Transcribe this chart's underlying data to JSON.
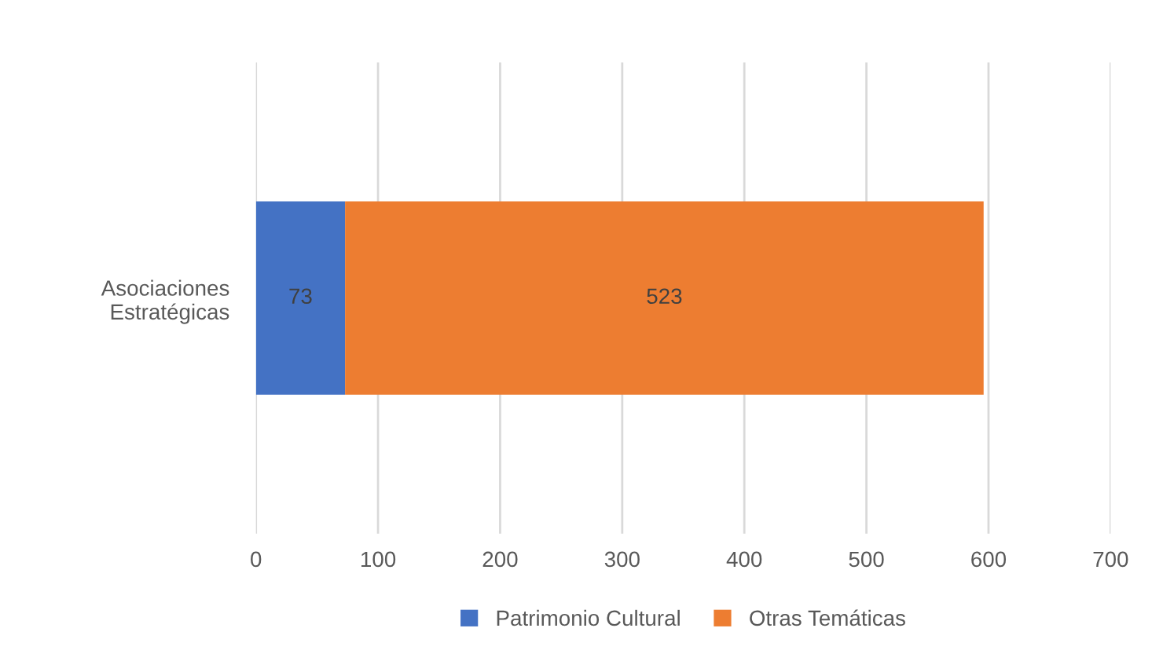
{
  "chart_data": {
    "type": "bar",
    "orientation": "horizontal",
    "stacked": true,
    "categories": [
      "Asociaciones\nEstratégicas"
    ],
    "series": [
      {
        "name": "Patrimonio Cultural",
        "color": "#4472c4",
        "values": [
          73
        ]
      },
      {
        "name": "Otras Temáticas",
        "color": "#ed7d31",
        "values": [
          523
        ]
      }
    ],
    "xlim": [
      0,
      700
    ],
    "xticks": [
      0,
      100,
      200,
      300,
      400,
      500,
      600,
      700
    ],
    "grid": "x",
    "legend": "bottom",
    "data_labels": true
  }
}
